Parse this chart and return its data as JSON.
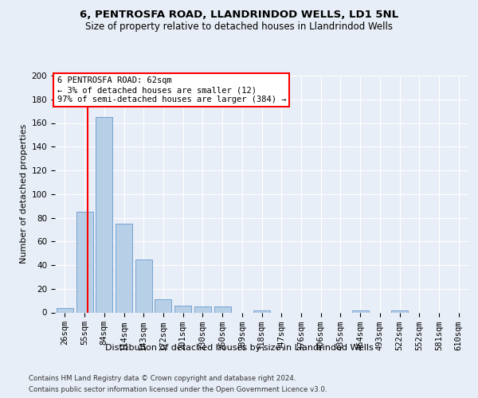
{
  "title1": "6, PENTROSFA ROAD, LLANDRINDOD WELLS, LD1 5NL",
  "title2": "Size of property relative to detached houses in Llandrindod Wells",
  "xlabel": "Distribution of detached houses by size in Llandrindod Wells",
  "ylabel": "Number of detached properties",
  "footer1": "Contains HM Land Registry data © Crown copyright and database right 2024.",
  "footer2": "Contains public sector information licensed under the Open Government Licence v3.0.",
  "annotation_line1": "6 PENTROSFA ROAD: 62sqm",
  "annotation_line2": "← 3% of detached houses are smaller (12)",
  "annotation_line3": "97% of semi-detached houses are larger (384) →",
  "bar_color": "#b8cfe8",
  "bar_edge_color": "#6699cc",
  "background_color": "#e8eef7",
  "grid_color": "#ffffff",
  "categories": [
    "26sqm",
    "55sqm",
    "84sqm",
    "114sqm",
    "143sqm",
    "172sqm",
    "201sqm",
    "230sqm",
    "260sqm",
    "289sqm",
    "318sqm",
    "347sqm",
    "376sqm",
    "406sqm",
    "435sqm",
    "464sqm",
    "493sqm",
    "522sqm",
    "552sqm",
    "581sqm",
    "610sqm"
  ],
  "values": [
    4,
    85,
    165,
    75,
    45,
    11,
    6,
    5,
    5,
    0,
    2,
    0,
    0,
    0,
    0,
    2,
    0,
    2,
    0,
    0,
    0
  ],
  "ylim": [
    0,
    200
  ],
  "yticks": [
    0,
    20,
    40,
    60,
    80,
    100,
    120,
    140,
    160,
    180,
    200
  ],
  "red_line_x": 1.15,
  "title1_fontsize": 9.5,
  "title2_fontsize": 8.5,
  "xlabel_fontsize": 8.0,
  "ylabel_fontsize": 8.0,
  "tick_fontsize": 7.5,
  "footer_fontsize": 6.2,
  "ann_fontsize": 7.5
}
